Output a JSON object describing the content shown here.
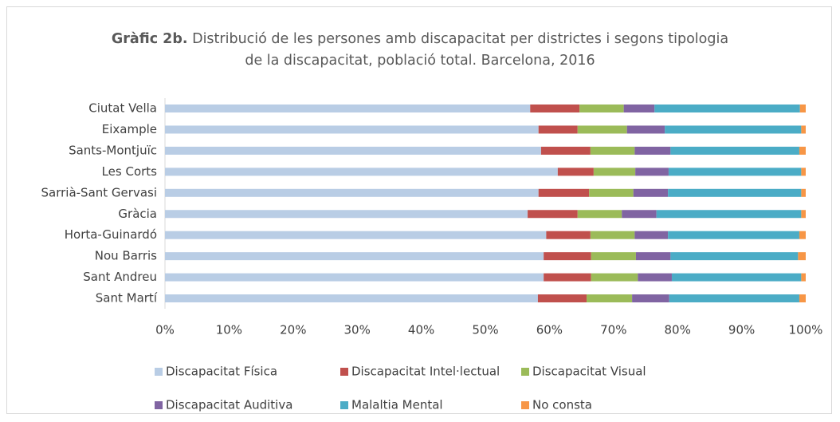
{
  "chart_data": {
    "type": "stacked_barh",
    "title_prefix": "Gràfic 2b.",
    "title": "Distribució de les persones amb discapacitat per districtes i segons tipologia de la discapacitat, població total. Barcelona, 2016",
    "categories": [
      "Ciutat Vella",
      "Eixample",
      "Sants-Montjuïc",
      "Les Corts",
      "Sarrià-Sant Gervasi",
      "Gràcia",
      "Horta-Guinardó",
      "Nou Barris",
      "Sant Andreu",
      "Sant Martí"
    ],
    "series": [
      {
        "name": "Discapacitat Física",
        "color": "#b9cde5",
        "values": [
          57.0,
          58.3,
          58.7,
          61.3,
          58.3,
          56.6,
          59.5,
          59.1,
          59.1,
          58.2
        ]
      },
      {
        "name": "Discapacitat Intel·lectual",
        "color": "#c0504d",
        "values": [
          7.7,
          6.1,
          7.7,
          5.6,
          7.9,
          7.8,
          6.9,
          7.4,
          7.4,
          7.6
        ]
      },
      {
        "name": "Discapacitat Visual",
        "color": "#9bbb59",
        "values": [
          6.9,
          7.7,
          6.9,
          6.5,
          6.9,
          6.9,
          6.9,
          7.0,
          7.3,
          7.1
        ]
      },
      {
        "name": "Discapacitat Auditiva",
        "color": "#8064a2",
        "values": [
          4.8,
          5.9,
          5.6,
          5.2,
          5.4,
          5.4,
          5.2,
          5.4,
          5.3,
          5.8
        ]
      },
      {
        "name": "Malaltia Mental",
        "color": "#4bacc6",
        "values": [
          22.7,
          21.3,
          20.1,
          20.7,
          20.8,
          22.6,
          20.5,
          19.9,
          20.2,
          20.3
        ]
      },
      {
        "name": "No consta",
        "color": "#f79646",
        "values": [
          0.9,
          0.7,
          1.0,
          0.7,
          0.7,
          0.7,
          1.0,
          1.2,
          0.7,
          1.0
        ]
      }
    ],
    "xlim": [
      0,
      100
    ],
    "xticks": [
      {
        "value": 0,
        "label": "0%"
      },
      {
        "value": 10,
        "label": "10%"
      },
      {
        "value": 20,
        "label": "20%"
      },
      {
        "value": 30,
        "label": "30%"
      },
      {
        "value": 40,
        "label": "40%"
      },
      {
        "value": 50,
        "label": "50%"
      },
      {
        "value": 60,
        "label": "60%"
      },
      {
        "value": 70,
        "label": "70%"
      },
      {
        "value": 80,
        "label": "80%"
      },
      {
        "value": 90,
        "label": "90%"
      },
      {
        "value": 100,
        "label": "100%"
      }
    ],
    "grid": false,
    "legend": "bottom"
  }
}
